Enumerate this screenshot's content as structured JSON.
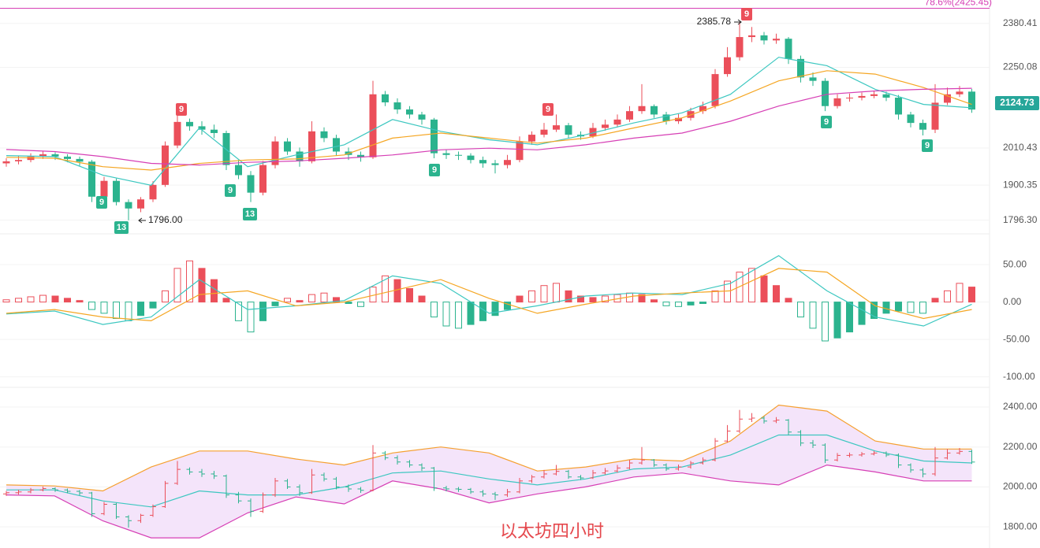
{
  "chart_data": [
    {
      "type": "candlestick",
      "title": "以太坊四小时",
      "up_color": "#eb4f5a",
      "down_color": "#2bb38e",
      "open": [
        1965,
        1971,
        1975,
        1985,
        1992,
        1985,
        1978,
        1970,
        1866,
        1913,
        1850,
        1831,
        1858,
        1901,
        2018,
        2088,
        2075,
        2065,
        2055,
        1960,
        1930,
        1878,
        1960,
        2030,
        2000,
        1971,
        2060,
        2040,
        2000,
        1990,
        1983,
        2170,
        2146,
        2125,
        2110,
        2095,
        1995,
        1990,
        1988,
        1975,
        1965,
        1960,
        1975,
        2030,
        2050,
        2065,
        2078,
        2050,
        2045,
        2070,
        2080,
        2095,
        2120,
        2135,
        2110,
        2090,
        2100,
        2120,
        2135,
        2230,
        2280,
        2340,
        2345,
        2330,
        2335,
        2275,
        2220,
        2210,
        2135,
        2158,
        2160,
        2165,
        2170,
        2160,
        2110,
        2085,
        2065,
        2145,
        2170,
        2178
      ],
      "high": [
        1980,
        1986,
        1995,
        2002,
        1998,
        1992,
        1985,
        1975,
        1925,
        1920,
        1858,
        1865,
        1912,
        2030,
        2130,
        2098,
        2090,
        2080,
        2062,
        1975,
        1942,
        1972,
        2045,
        2040,
        2012,
        2090,
        2072,
        2050,
        2012,
        2000,
        2210,
        2180,
        2158,
        2135,
        2118,
        2100,
        2005,
        2000,
        1995,
        1985,
        1975,
        1990,
        2045,
        2060,
        2085,
        2110,
        2085,
        2060,
        2085,
        2095,
        2110,
        2135,
        2200,
        2140,
        2118,
        2112,
        2130,
        2148,
        2245,
        2310,
        2385.78,
        2370,
        2355,
        2350,
        2340,
        2285,
        2235,
        2218,
        2170,
        2172,
        2175,
        2180,
        2178,
        2168,
        2118,
        2095,
        2200,
        2190,
        2195,
        2186
      ],
      "low": [
        1955,
        1962,
        1968,
        1978,
        1975,
        1968,
        1958,
        1850,
        1858,
        1840,
        1796,
        1820,
        1850,
        1895,
        2010,
        2062,
        2050,
        2040,
        1945,
        1918,
        1850,
        1870,
        1950,
        1990,
        1955,
        1965,
        2028,
        1988,
        1975,
        1970,
        1978,
        2135,
        2112,
        2098,
        2080,
        1980,
        1978,
        1975,
        1965,
        1952,
        1935,
        1950,
        1968,
        2020,
        2042,
        2058,
        2040,
        2035,
        2040,
        2062,
        2072,
        2088,
        2112,
        2100,
        2080,
        2082,
        2092,
        2112,
        2128,
        2222,
        2270,
        2325,
        2318,
        2320,
        2260,
        2205,
        2195,
        2120,
        2128,
        2148,
        2152,
        2158,
        2150,
        2095,
        2072,
        2048,
        2055,
        2138,
        2162,
        2115
      ],
      "close": [
        1971,
        1975,
        1985,
        1992,
        1985,
        1978,
        1970,
        1866,
        1913,
        1850,
        1831,
        1858,
        1901,
        2018,
        2088,
        2075,
        2065,
        2055,
        1960,
        1930,
        1878,
        1960,
        2030,
        2000,
        1971,
        2060,
        2040,
        2000,
        1990,
        1983,
        2170,
        2146,
        2125,
        2110,
        2095,
        1995,
        1990,
        1988,
        1975,
        1965,
        1960,
        1975,
        2030,
        2050,
        2065,
        2078,
        2050,
        2045,
        2070,
        2080,
        2095,
        2120,
        2135,
        2110,
        2090,
        2100,
        2120,
        2135,
        2230,
        2280,
        2340,
        2345,
        2330,
        2335,
        2275,
        2220,
        2210,
        2135,
        2158,
        2160,
        2165,
        2170,
        2160,
        2110,
        2085,
        2065,
        2145,
        2170,
        2178,
        2124.73
      ],
      "lines": [
        {
          "color": "#3cc7c0",
          "values": [
            1988,
            1985,
            1930,
            1900,
            2070,
            1955,
            1990,
            2020,
            2095,
            2060,
            2035,
            2020,
            2050,
            2085,
            2115,
            2170,
            2280,
            2255,
            2185,
            2140,
            2130
          ]
        },
        {
          "color": "#f5a623",
          "values": [
            1983,
            1980,
            1955,
            1945,
            1965,
            1975,
            1978,
            1990,
            2040,
            2055,
            2040,
            2025,
            2040,
            2070,
            2100,
            2150,
            2210,
            2240,
            2230,
            2190,
            2140
          ]
        },
        {
          "color": "#d63fb5",
          "values": [
            2006,
            2000,
            1985,
            1965,
            1960,
            1968,
            1972,
            1980,
            1990,
            2005,
            2010,
            2005,
            2020,
            2040,
            2055,
            2090,
            2135,
            2170,
            2180,
            2185,
            2188
          ]
        }
      ],
      "fib_line": {
        "value": 2425.45,
        "label": "78.6%(2425.45)",
        "color": "#d63fb5"
      },
      "annotations": [
        {
          "value": 2385.78,
          "label": "2385.78"
        },
        {
          "value": 1796,
          "label": "1796.00"
        }
      ],
      "td_marks": [
        "9",
        "9",
        "9",
        "9",
        "9",
        "9",
        "9",
        "9",
        "13",
        "13"
      ],
      "ylim": [
        1758,
        2450
      ],
      "yticks": [
        2380.41,
        2250.08,
        2010.43,
        1900.35,
        {
          "value": 1796.3,
          "label": "1796.30"
        }
      ]
    },
    {
      "type": "macd",
      "up_color": "#eb4f5a",
      "down_color": "#2bb38e",
      "histogram": [
        3,
        5,
        7,
        9,
        8,
        5,
        2,
        -10,
        -15,
        -22,
        -25,
        -18,
        -8,
        15,
        45,
        55,
        45,
        30,
        5,
        -25,
        -40,
        -25,
        -5,
        5,
        2,
        10,
        12,
        6,
        -2,
        -6,
        20,
        35,
        30,
        18,
        8,
        -20,
        -32,
        -35,
        -30,
        -25,
        -18,
        -10,
        8,
        15,
        22,
        25,
        15,
        8,
        6,
        8,
        10,
        12,
        10,
        3,
        -5,
        -6,
        -4,
        -2,
        15,
        28,
        40,
        45,
        35,
        22,
        5,
        -20,
        -35,
        -52,
        -48,
        -40,
        -30,
        -22,
        -15,
        -12,
        -14,
        -15,
        5,
        15,
        25,
        20
      ],
      "lines": [
        {
          "color": "#3cc7c0",
          "values": [
            -16,
            -12,
            -30,
            -20,
            30,
            -10,
            -5,
            2,
            35,
            25,
            -15,
            -5,
            8,
            12,
            10,
            25,
            62,
            15,
            -20,
            -32,
            -3
          ]
        },
        {
          "color": "#f5a623",
          "values": [
            -15,
            -10,
            -20,
            -25,
            10,
            15,
            -5,
            0,
            15,
            30,
            5,
            -15,
            -3,
            8,
            12,
            15,
            45,
            40,
            -5,
            -22,
            -10
          ]
        }
      ],
      "ylim": [
        -112,
        88
      ],
      "yticks": [
        {
          "value": 50,
          "label": "50.00"
        },
        {
          "value": 0,
          "label": "0.00"
        },
        {
          "value": -50,
          "label": "-50.00"
        },
        {
          "value": -100,
          "label": "-100.00"
        }
      ]
    },
    {
      "type": "bollinger",
      "band_color": "#f4e4fa",
      "lines": [
        {
          "color": "#f5a030",
          "values": [
            2010,
            2005,
            1980,
            2100,
            2180,
            2180,
            2140,
            2110,
            2170,
            2200,
            2170,
            2080,
            2100,
            2140,
            2130,
            2230,
            2410,
            2380,
            2230,
            2190,
            2190
          ]
        },
        {
          "color": "#3cc7c0",
          "values": [
            1985,
            1985,
            1930,
            1900,
            1980,
            1960,
            1960,
            2000,
            2070,
            2080,
            2040,
            2010,
            2040,
            2090,
            2100,
            2160,
            2260,
            2260,
            2180,
            2130,
            2120
          ]
        },
        {
          "color": "#d63fb5",
          "values": [
            1960,
            1955,
            1830,
            1745,
            1745,
            1870,
            1950,
            1915,
            2030,
            1990,
            1920,
            1965,
            2000,
            2050,
            2070,
            2030,
            2010,
            2110,
            2075,
            2030,
            2030
          ]
        }
      ],
      "ylim": [
        1694,
        2487
      ],
      "yticks": [
        {
          "value": 2400,
          "label": "2400.00"
        },
        {
          "value": 2200,
          "label": "2200.00"
        },
        {
          "value": 2000,
          "label": "2000.00"
        },
        {
          "value": 1800,
          "label": "1800.00"
        }
      ]
    }
  ]
}
